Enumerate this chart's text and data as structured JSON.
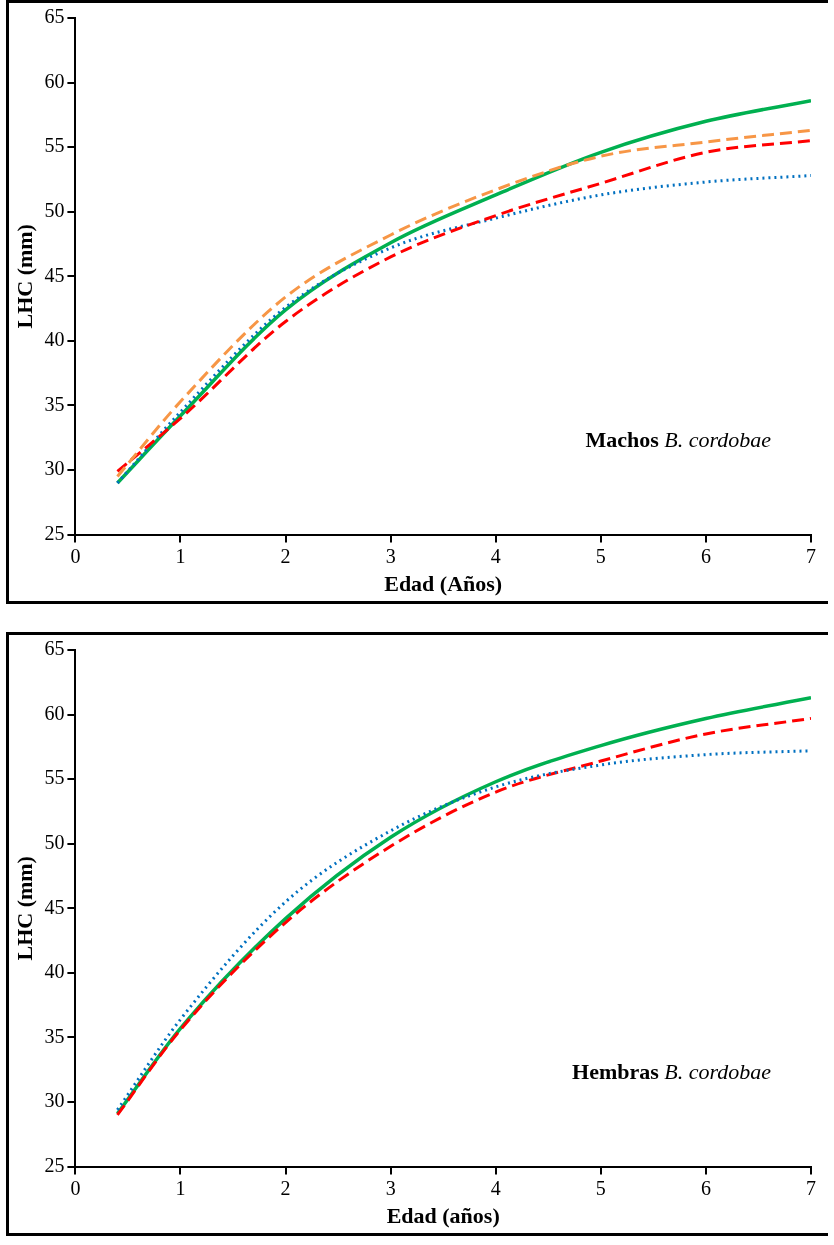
{
  "chart_data": [
    {
      "type": "line",
      "xlabel": "Edad (Años)",
      "ylabel": "LHC (mm)",
      "x": [
        0.4,
        1,
        2,
        3,
        4,
        5,
        6,
        7
      ],
      "xlim": [
        0,
        7
      ],
      "xticks": [
        0,
        1,
        2,
        3,
        4,
        5,
        6,
        7
      ],
      "ylim": [
        25,
        65
      ],
      "yticks": [
        25,
        30,
        35,
        40,
        45,
        50,
        55,
        60,
        65
      ],
      "grid": false,
      "marker": "none",
      "annotations": [
        "Machos B. cordobae"
      ],
      "series": [
        {
          "color": "#f79646",
          "line_style": "dashed",
          "values": [
            29.5,
            35.3,
            43.4,
            48.2,
            51.7,
            54.3,
            55.4,
            56.3
          ]
        },
        {
          "color": "#ff0000",
          "line_style": "dashed",
          "values": [
            29.9,
            34.0,
            41.5,
            46.5,
            49.7,
            52.2,
            54.6,
            55.5
          ]
        },
        {
          "color": "#0070c0",
          "line_style": "dotted",
          "values": [
            29.0,
            34.5,
            42.6,
            47.2,
            49.5,
            51.3,
            52.3,
            52.8
          ]
        },
        {
          "color": "#00b050",
          "line_style": "solid",
          "values": [
            29.0,
            34.2,
            42.4,
            47.6,
            51.3,
            54.6,
            57.0,
            58.6
          ]
        }
      ]
    },
    {
      "type": "line",
      "xlabel": "Edad (años)",
      "ylabel": "LHC (mm)",
      "x": [
        0.4,
        1,
        2,
        3,
        4,
        5,
        6,
        7
      ],
      "xlim": [
        0,
        7
      ],
      "xticks": [
        0,
        1,
        2,
        3,
        4,
        5,
        6,
        7
      ],
      "ylim": [
        25,
        65
      ],
      "yticks": [
        25,
        30,
        35,
        40,
        45,
        50,
        55,
        60,
        65
      ],
      "grid": false,
      "marker": "none",
      "annotations": [
        "Hembras B. cordobae"
      ],
      "series": [
        {
          "color": "#0070c0",
          "line_style": "dotted",
          "values": [
            29.4,
            36.4,
            45.5,
            51.0,
            54.4,
            56.1,
            56.9,
            57.2
          ]
        },
        {
          "color": "#ff0000",
          "line_style": "dashed",
          "values": [
            29.0,
            35.6,
            43.9,
            49.8,
            54.0,
            56.4,
            58.5,
            59.7
          ]
        },
        {
          "color": "#00b050",
          "line_style": "solid",
          "values": [
            29.1,
            35.7,
            44.2,
            50.5,
            54.8,
            57.6,
            59.7,
            61.3
          ]
        }
      ]
    }
  ]
}
